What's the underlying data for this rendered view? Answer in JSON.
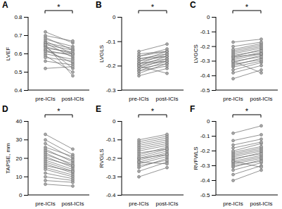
{
  "chart_data": [
    {
      "type": "paired",
      "panel": "A",
      "y_label": "LVEF",
      "categories": [
        "pre-ICIs",
        "post-ICIs"
      ],
      "annotation": "*",
      "color": "#666666",
      "marker": "circle",
      "ylim": [
        0.4,
        0.8
      ],
      "yticks": [
        0.4,
        0.5,
        0.6,
        0.7,
        0.8
      ],
      "values": [
        [
          0.72,
          0.7,
          0.69,
          0.68,
          0.67,
          0.66,
          0.66,
          0.65,
          0.64,
          0.64,
          0.63,
          0.62,
          0.62,
          0.61,
          0.6,
          0.59,
          0.58,
          0.56,
          0.52,
          0.65
        ],
        [
          0.66,
          0.67,
          0.62,
          0.64,
          0.6,
          0.63,
          0.58,
          0.62,
          0.6,
          0.52,
          0.61,
          0.59,
          0.55,
          0.6,
          0.57,
          0.5,
          0.56,
          0.54,
          0.53,
          0.48
        ]
      ]
    },
    {
      "type": "paired",
      "panel": "B",
      "y_label": "LVGLS",
      "categories": [
        "pre-ICIs",
        "post-ICIs"
      ],
      "annotation": "*",
      "color": "#666666",
      "marker": "circle",
      "ylim": [
        -0.3,
        0
      ],
      "yticks": [
        -0.3,
        -0.2,
        -0.1,
        0
      ],
      "values": [
        [
          -0.24,
          -0.23,
          -0.22,
          -0.22,
          -0.21,
          -0.21,
          -0.2,
          -0.2,
          -0.19,
          -0.19,
          -0.19,
          -0.18,
          -0.18,
          -0.17,
          -0.17,
          -0.16,
          -0.16,
          -0.15,
          -0.14,
          -0.2
        ],
        [
          -0.21,
          -0.19,
          -0.2,
          -0.18,
          -0.19,
          -0.17,
          -0.18,
          -0.16,
          -0.17,
          -0.15,
          -0.18,
          -0.16,
          -0.14,
          -0.16,
          -0.15,
          -0.14,
          -0.13,
          -0.14,
          -0.11,
          -0.23
        ]
      ]
    },
    {
      "type": "paired",
      "panel": "C",
      "y_label": "LVGCS",
      "categories": [
        "pre-ICIs",
        "post-ICIs"
      ],
      "annotation": "*",
      "color": "#666666",
      "marker": "circle",
      "ylim": [
        -0.5,
        0
      ],
      "yticks": [
        -0.5,
        -0.4,
        -0.3,
        -0.2,
        -0.1,
        0
      ],
      "values": [
        [
          -0.42,
          -0.38,
          -0.36,
          -0.34,
          -0.33,
          -0.32,
          -0.31,
          -0.3,
          -0.29,
          -0.28,
          -0.27,
          -0.27,
          -0.26,
          -0.25,
          -0.24,
          -0.23,
          -0.22,
          -0.2,
          -0.17,
          -0.3
        ],
        [
          -0.36,
          -0.33,
          -0.31,
          -0.3,
          -0.28,
          -0.29,
          -0.26,
          -0.27,
          -0.25,
          -0.24,
          -0.25,
          -0.22,
          -0.23,
          -0.21,
          -0.2,
          -0.19,
          -0.18,
          -0.17,
          -0.15,
          -0.38
        ]
      ]
    },
    {
      "type": "paired",
      "panel": "D",
      "y_label": "TAPSE, mm",
      "categories": [
        "pre-ICIs",
        "post-ICIs"
      ],
      "annotation": "*",
      "color": "#666666",
      "marker": "circle",
      "ylim": [
        0,
        40
      ],
      "yticks": [
        0,
        10,
        20,
        30,
        40
      ],
      "values": [
        [
          33,
          30,
          28,
          26,
          25,
          24,
          23,
          22,
          21,
          20,
          19,
          18,
          17,
          16,
          15,
          14,
          12,
          10,
          8,
          6
        ],
        [
          25,
          22,
          20,
          21,
          18,
          19,
          16,
          17,
          15,
          16,
          14,
          13,
          12,
          13,
          11,
          10,
          9,
          8,
          7,
          5
        ]
      ]
    },
    {
      "type": "paired",
      "panel": "E",
      "y_label": "RVGLS",
      "categories": [
        "pre-ICIs",
        "post-ICIs"
      ],
      "annotation": "*",
      "color": "#666666",
      "marker": "circle",
      "ylim": [
        -0.4,
        0
      ],
      "yticks": [
        -0.4,
        -0.3,
        -0.2,
        -0.1,
        0
      ],
      "values": [
        [
          -0.3,
          -0.27,
          -0.25,
          -0.24,
          -0.23,
          -0.22,
          -0.21,
          -0.2,
          -0.2,
          -0.19,
          -0.18,
          -0.17,
          -0.16,
          -0.15,
          -0.14,
          -0.13,
          -0.12,
          -0.11,
          -0.1,
          -0.22
        ],
        [
          -0.25,
          -0.22,
          -0.2,
          -0.21,
          -0.19,
          -0.18,
          -0.17,
          -0.16,
          -0.18,
          -0.15,
          -0.14,
          -0.15,
          -0.13,
          -0.12,
          -0.11,
          -0.1,
          -0.09,
          -0.08,
          -0.07,
          -0.23
        ]
      ]
    },
    {
      "type": "paired",
      "panel": "F",
      "y_label": "RVFWLS",
      "categories": [
        "pre-ICIs",
        "post-ICIs"
      ],
      "annotation": "*",
      "color": "#666666",
      "marker": "circle",
      "ylim": [
        -0.5,
        0
      ],
      "yticks": [
        -0.5,
        -0.4,
        -0.3,
        -0.2,
        -0.1,
        0
      ],
      "values": [
        [
          -0.4,
          -0.36,
          -0.33,
          -0.31,
          -0.3,
          -0.29,
          -0.28,
          -0.27,
          -0.26,
          -0.25,
          -0.24,
          -0.23,
          -0.22,
          -0.21,
          -0.2,
          -0.18,
          -0.16,
          -0.13,
          -0.08,
          -0.27
        ],
        [
          -0.33,
          -0.3,
          -0.28,
          -0.26,
          -0.27,
          -0.25,
          -0.24,
          -0.23,
          -0.21,
          -0.22,
          -0.2,
          -0.19,
          -0.18,
          -0.17,
          -0.15,
          -0.14,
          -0.12,
          -0.09,
          -0.03,
          -0.31
        ]
      ]
    }
  ]
}
